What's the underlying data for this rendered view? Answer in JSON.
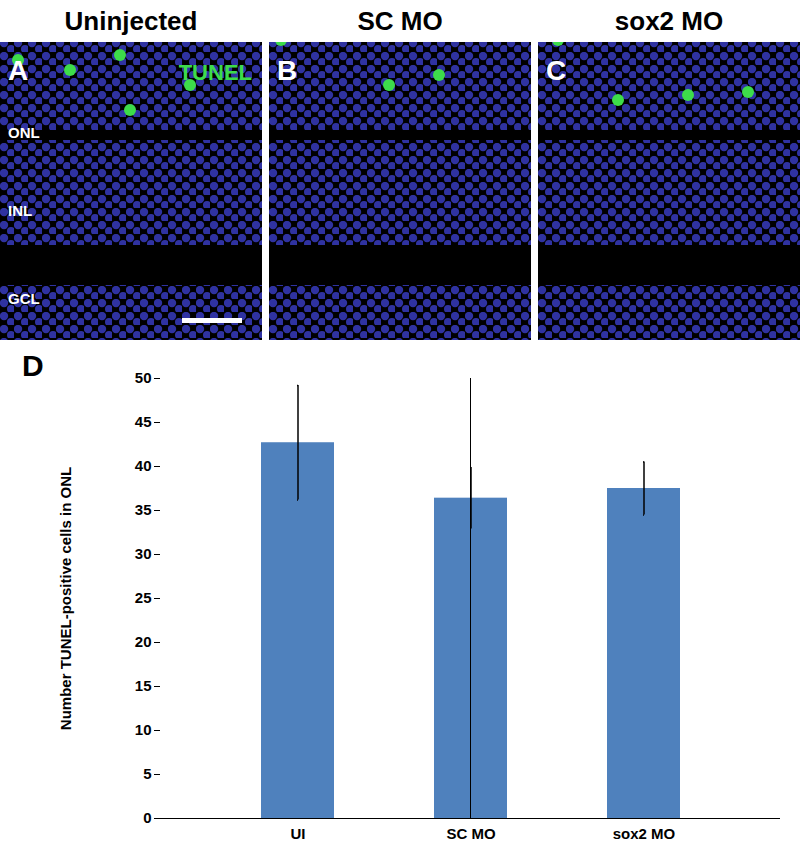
{
  "panels": [
    {
      "letter": "A",
      "title": "Uninjected",
      "stain": "TUNEL",
      "layers": [
        "ONL",
        "INL",
        "GCL"
      ]
    },
    {
      "letter": "B",
      "title": "SC MO"
    },
    {
      "letter": "C",
      "title": "sox2 MO"
    }
  ],
  "chart_data": {
    "type": "bar",
    "panel_letter": "D",
    "y_label": "Number TUNEL-positive cells in ONL",
    "categories": [
      "UI",
      "SC MO",
      "sox2 MO"
    ],
    "values": [
      42.7,
      36.4,
      37.5
    ],
    "error": [
      6.5,
      3.5,
      3.0
    ],
    "color": "#4f81bd",
    "ylim": [
      0,
      50
    ],
    "yticks": [
      0,
      5,
      10,
      15,
      20,
      25,
      30,
      35,
      40,
      45,
      50
    ],
    "grid": false
  }
}
